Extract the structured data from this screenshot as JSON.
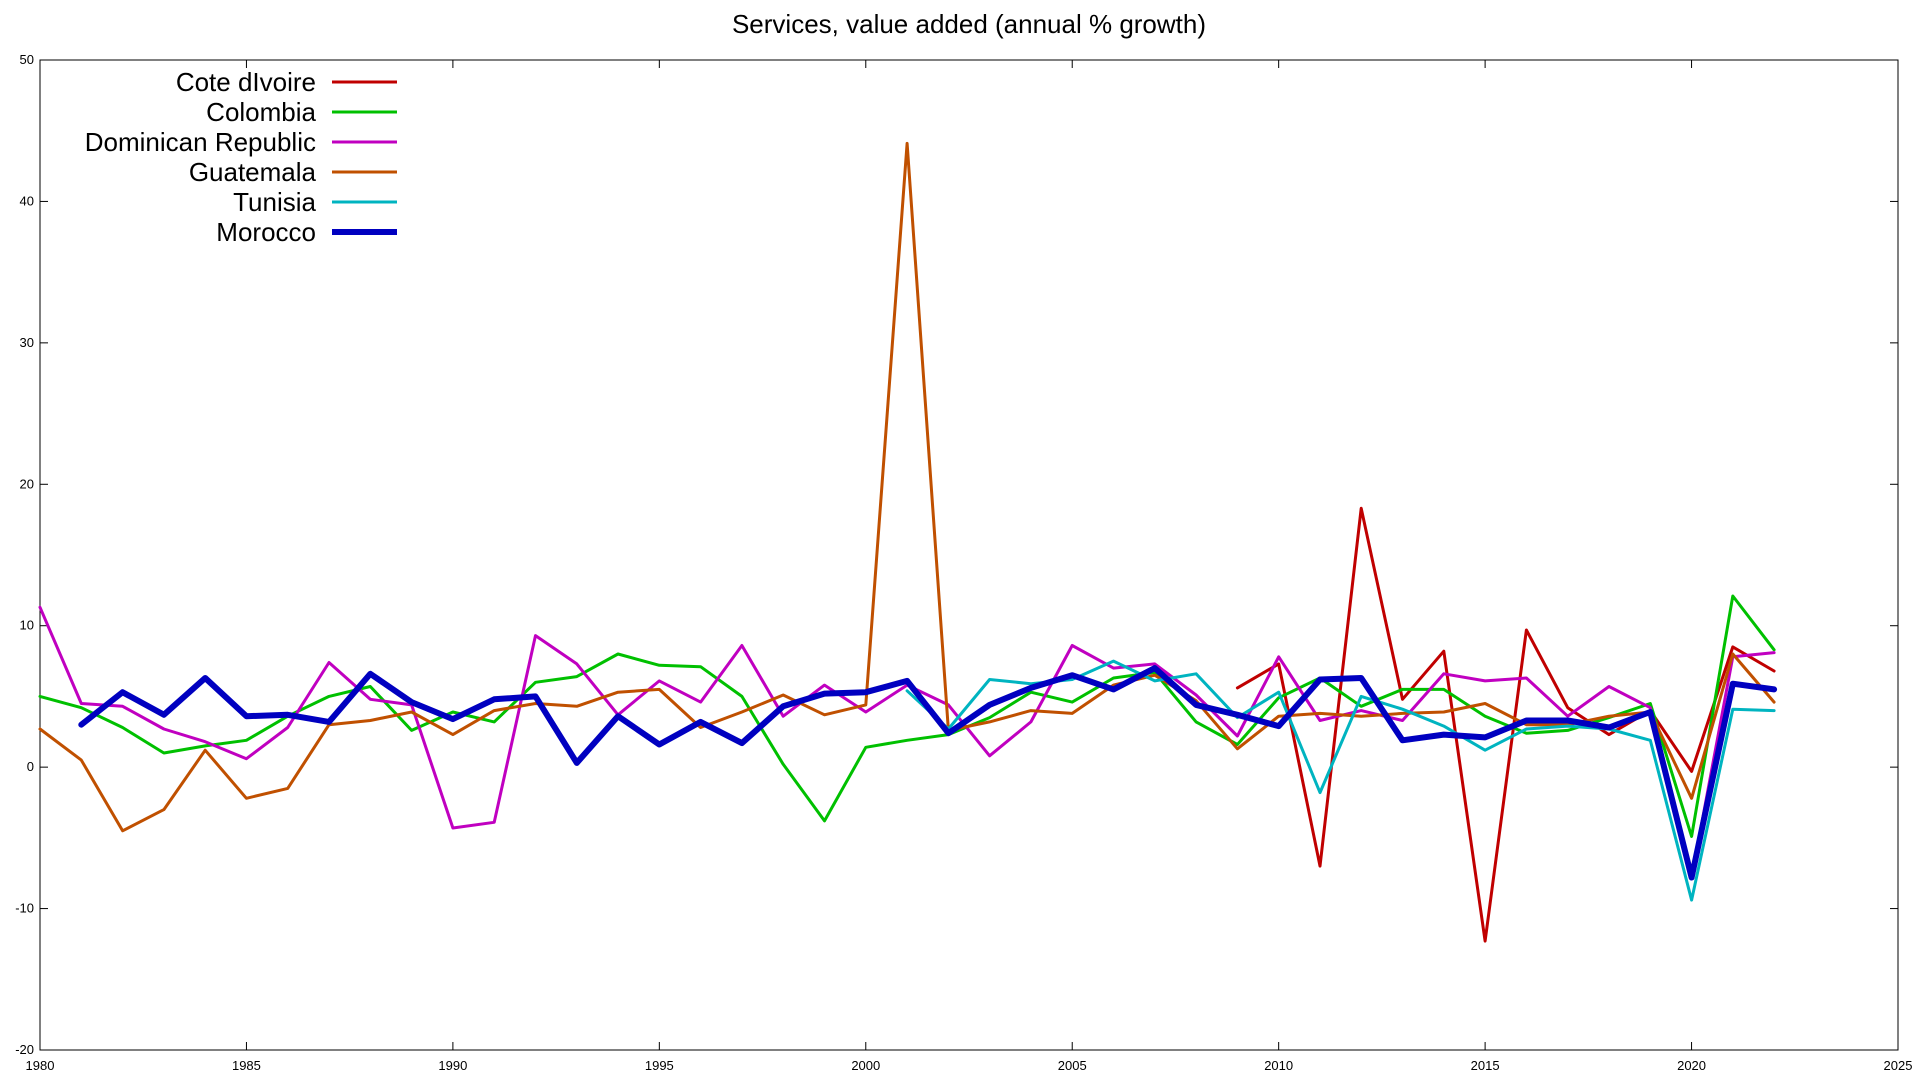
{
  "chart_data": {
    "type": "line",
    "title": "Services, value added (annual % growth)",
    "xlabel": "",
    "ylabel": "",
    "xlim": [
      1980,
      2025
    ],
    "ylim": [
      -20,
      50
    ],
    "x_ticks": [
      1980,
      1985,
      1990,
      1995,
      2000,
      2005,
      2010,
      2015,
      2020,
      2025
    ],
    "y_ticks": [
      -20,
      -10,
      0,
      10,
      20,
      30,
      40,
      50
    ],
    "legend_position": "top-left",
    "x": [
      1980,
      1981,
      1982,
      1983,
      1984,
      1985,
      1986,
      1987,
      1988,
      1989,
      1990,
      1991,
      1992,
      1993,
      1994,
      1995,
      1996,
      1997,
      1998,
      1999,
      2000,
      2001,
      2002,
      2003,
      2004,
      2005,
      2006,
      2007,
      2008,
      2009,
      2010,
      2011,
      2012,
      2013,
      2014,
      2015,
      2016,
      2017,
      2018,
      2019,
      2020,
      2021,
      2022
    ],
    "series": [
      {
        "name": "Cote dIvoire",
        "color": "#c00000",
        "width": 3,
        "values": [
          null,
          null,
          null,
          null,
          null,
          null,
          null,
          null,
          null,
          null,
          null,
          null,
          null,
          null,
          null,
          null,
          null,
          null,
          null,
          null,
          null,
          null,
          null,
          null,
          null,
          null,
          null,
          null,
          null,
          5.6,
          7.3,
          -7.0,
          18.3,
          4.8,
          8.2,
          -12.3,
          9.7,
          4.2,
          2.3,
          4.0,
          -0.3,
          8.5,
          6.8
        ]
      },
      {
        "name": "Colombia",
        "color": "#00c000",
        "width": 3,
        "values": [
          5.0,
          4.2,
          2.8,
          1.0,
          1.5,
          1.9,
          3.6,
          5.0,
          5.7,
          2.6,
          3.9,
          3.2,
          6.0,
          6.4,
          8.0,
          7.2,
          7.1,
          5.0,
          0.2,
          -3.8,
          1.4,
          1.9,
          2.3,
          3.5,
          5.3,
          4.6,
          6.3,
          6.7,
          3.2,
          1.6,
          4.9,
          6.3,
          4.3,
          5.5,
          5.5,
          3.6,
          2.4,
          2.6,
          3.5,
          4.5,
          -4.9,
          12.1,
          8.3
        ]
      },
      {
        "name": "Dominican Republic",
        "color": "#c000c0",
        "width": 3,
        "values": [
          11.3,
          4.5,
          4.3,
          2.7,
          1.8,
          0.6,
          2.8,
          7.4,
          4.8,
          4.4,
          -4.3,
          -3.9,
          9.3,
          7.3,
          3.7,
          6.1,
          4.6,
          8.6,
          3.6,
          5.8,
          3.9,
          5.8,
          4.4,
          0.8,
          3.2,
          8.6,
          7.0,
          7.3,
          5.1,
          2.2,
          7.8,
          3.3,
          4.0,
          3.3,
          6.6,
          6.1,
          6.3,
          3.6,
          5.7,
          4.2,
          -7.8,
          7.8,
          8.1
        ]
      },
      {
        "name": "Guatemala",
        "color": "#c05000",
        "width": 3,
        "values": [
          2.7,
          0.5,
          -4.5,
          -3.0,
          1.2,
          -2.2,
          -1.5,
          3.0,
          3.3,
          3.9,
          2.3,
          4.0,
          4.5,
          4.3,
          5.3,
          5.5,
          2.8,
          3.9,
          5.1,
          3.7,
          4.4,
          44.1,
          2.6,
          3.2,
          4.0,
          3.8,
          5.8,
          6.5,
          4.7,
          1.3,
          3.6,
          3.8,
          3.6,
          3.8,
          3.9,
          4.5,
          3.0,
          3.0,
          3.6,
          3.9,
          -2.2,
          8.0,
          4.6
        ]
      },
      {
        "name": "Tunisia",
        "color": "#00b4c0",
        "width": 3,
        "values": [
          null,
          null,
          null,
          null,
          null,
          null,
          null,
          null,
          null,
          null,
          null,
          null,
          null,
          null,
          null,
          null,
          null,
          null,
          null,
          null,
          null,
          5.4,
          2.7,
          6.2,
          5.9,
          6.2,
          7.5,
          6.1,
          6.6,
          3.5,
          5.3,
          -1.8,
          5.0,
          4.1,
          2.9,
          1.2,
          2.7,
          2.9,
          2.7,
          1.9,
          -9.4,
          4.1,
          4.0
        ]
      },
      {
        "name": "Morocco",
        "color": "#0000c0",
        "width": 6,
        "values": [
          null,
          3.0,
          5.3,
          3.7,
          6.3,
          3.6,
          3.7,
          3.2,
          6.6,
          4.6,
          3.4,
          4.8,
          5.0,
          0.3,
          3.6,
          1.6,
          3.2,
          1.7,
          4.3,
          5.2,
          5.3,
          6.1,
          2.4,
          4.4,
          5.6,
          6.5,
          5.5,
          7.0,
          4.4,
          3.7,
          2.9,
          6.2,
          6.3,
          1.9,
          2.3,
          2.1,
          3.3,
          3.3,
          2.8,
          3.9,
          -7.8,
          5.9,
          5.5
        ]
      }
    ]
  }
}
